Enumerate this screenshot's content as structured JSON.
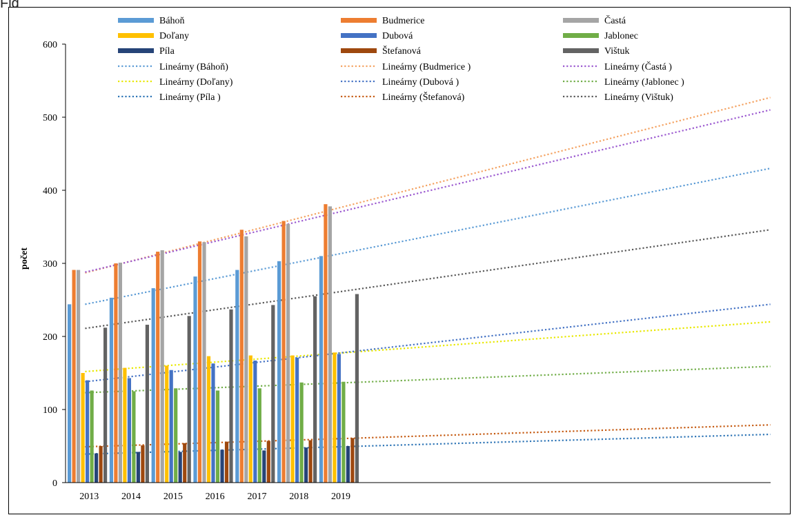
{
  "page": {
    "title_fragment": "Fig"
  },
  "chart_data": {
    "type": "bar",
    "title": "",
    "xlabel": "",
    "ylabel": "počet",
    "ylim": [
      0,
      600
    ],
    "yticks": [
      0,
      100,
      200,
      300,
      400,
      500,
      600
    ],
    "grid": false,
    "legend_position": "top",
    "categories": [
      "2013",
      "2014",
      "2015",
      "2016",
      "2017",
      "2018",
      "2019"
    ],
    "series": [
      {
        "name": "Báhoň",
        "color": "#5B9BD5",
        "values": [
          244,
          253,
          266,
          282,
          291,
          303,
          310
        ]
      },
      {
        "name": "Budmerice",
        "color": "#ED7D31",
        "values": [
          291,
          300,
          316,
          330,
          346,
          358,
          381
        ]
      },
      {
        "name": "Častá",
        "color": "#A5A5A5",
        "values": [
          291,
          301,
          318,
          329,
          337,
          354,
          378
        ]
      },
      {
        "name": "Doľany",
        "color": "#FFC000",
        "values": [
          150,
          157,
          160,
          173,
          174,
          174,
          178
        ]
      },
      {
        "name": "Dubová",
        "color": "#4472C4",
        "values": [
          140,
          143,
          154,
          163,
          167,
          171,
          176
        ]
      },
      {
        "name": "Jablonec",
        "color": "#70AD47",
        "values": [
          126,
          125,
          129,
          126,
          129,
          137,
          138
        ]
      },
      {
        "name": "Píla",
        "color": "#264478",
        "values": [
          40,
          42,
          42,
          45,
          44,
          48,
          50
        ]
      },
      {
        "name": "Štefanová",
        "color": "#9E480E",
        "values": [
          50,
          51,
          54,
          56,
          57,
          58,
          61
        ]
      },
      {
        "name": "Vištuk",
        "color": "#636363",
        "values": [
          212,
          216,
          228,
          237,
          243,
          255,
          258
        ]
      }
    ],
    "trendlines": {
      "x_extent_categories": 17,
      "items": [
        {
          "name": "Lineárny (Báhoň)",
          "color": "#5B9BD5",
          "series": "Báhoň",
          "start": 244,
          "end": 430
        },
        {
          "name": "Lineárny (Budmerice )",
          "color": "#F4A261",
          "series": "Budmerice",
          "start": 287,
          "end": 527
        },
        {
          "name": "Lineárny (Častá )",
          "color": "#9B59D0",
          "series": "Častá",
          "start": 288,
          "end": 510
        },
        {
          "name": "Lineárny (Doľany)",
          "color": "#E8E800",
          "series": "Doľany",
          "start": 152,
          "end": 220
        },
        {
          "name": "Lineárny (Dubová )",
          "color": "#4472C4",
          "series": "Dubová",
          "start": 138,
          "end": 244
        },
        {
          "name": "Lineárny (Jablonec )",
          "color": "#70AD47",
          "series": "Jablonec",
          "start": 123,
          "end": 159
        },
        {
          "name": "Lineárny (Píla )",
          "color": "#2E75B6",
          "series": "Píla",
          "start": 39,
          "end": 66
        },
        {
          "name": "Lineárny (Štefanová)",
          "color": "#C55A11",
          "series": "Štefanová",
          "start": 49,
          "end": 79
        },
        {
          "name": "Lineárny (Vištuk)",
          "color": "#595959",
          "series": "Vištuk",
          "start": 211,
          "end": 346
        }
      ]
    }
  }
}
